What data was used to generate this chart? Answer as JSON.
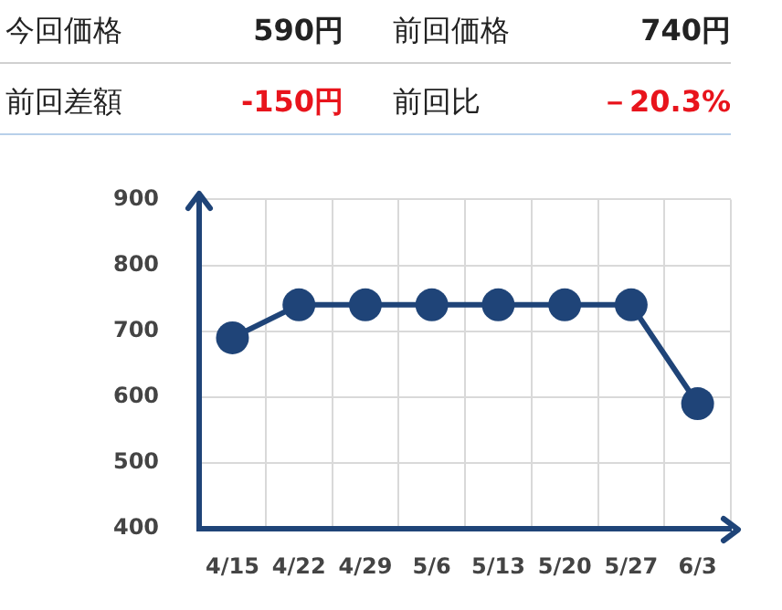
{
  "chart_data": {
    "type": "line",
    "categories": [
      "4/15",
      "4/22",
      "4/29",
      "5/6",
      "5/13",
      "5/20",
      "5/27",
      "6/3"
    ],
    "values": [
      690,
      740,
      740,
      740,
      740,
      740,
      740,
      590
    ],
    "color": "#1f4478",
    "marker": "circle",
    "ylim": [
      400,
      900
    ],
    "yticks": [
      400,
      500,
      600,
      700,
      800,
      900
    ],
    "grid": true,
    "annotations": [
      "今回価格",
      "590円",
      "前回価格",
      "740円",
      "前回差額",
      "-150円",
      "前回比",
      "－20.3%"
    ]
  }
}
